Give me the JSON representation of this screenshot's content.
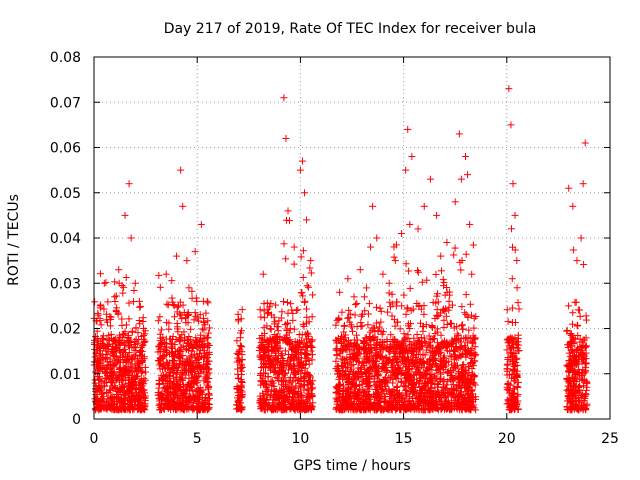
{
  "chart_data": {
    "type": "scatter",
    "title": "Day 217 of 2019, Rate Of TEC Index for receiver bula",
    "xlabel": "GPS time / hours",
    "ylabel": "ROTI / TECUs",
    "xlim": [
      0,
      25
    ],
    "ylim": [
      0,
      0.08
    ],
    "grid": true,
    "marker": "+",
    "series_color": "#ff0000",
    "x_ticks": [
      {
        "value": 0,
        "label": "0"
      },
      {
        "value": 5,
        "label": "5"
      },
      {
        "value": 10,
        "label": "10"
      },
      {
        "value": 15,
        "label": "15"
      },
      {
        "value": 20,
        "label": "20"
      },
      {
        "value": 25,
        "label": "25"
      }
    ],
    "y_ticks": [
      {
        "value": 0,
        "label": "0"
      },
      {
        "value": 0.01,
        "label": "0.01"
      },
      {
        "value": 0.02,
        "label": "0.02"
      },
      {
        "value": 0.03,
        "label": "0.03"
      },
      {
        "value": 0.04,
        "label": "0.04"
      },
      {
        "value": 0.05,
        "label": "0.05"
      },
      {
        "value": 0.06,
        "label": "0.06"
      },
      {
        "value": 0.07,
        "label": "0.07"
      },
      {
        "value": 0.08,
        "label": "0.08"
      }
    ],
    "observation_windows": [
      {
        "start": 0.0,
        "end": 2.5,
        "peak": 0.052
      },
      {
        "start": 3.1,
        "end": 5.0,
        "peak": 0.055
      },
      {
        "start": 5.0,
        "end": 5.6,
        "peak": 0.043
      },
      {
        "start": 6.9,
        "end": 7.2,
        "peak": 0.023
      },
      {
        "start": 8.0,
        "end": 9.1,
        "peak": 0.032
      },
      {
        "start": 9.1,
        "end": 9.6,
        "peak": 0.071
      },
      {
        "start": 9.6,
        "end": 10.6,
        "peak": 0.06
      },
      {
        "start": 11.7,
        "end": 13.2,
        "peak": 0.035
      },
      {
        "start": 13.2,
        "end": 14.4,
        "peak": 0.047
      },
      {
        "start": 14.4,
        "end": 15.6,
        "peak": 0.064
      },
      {
        "start": 15.6,
        "end": 17.3,
        "peak": 0.053
      },
      {
        "start": 17.3,
        "end": 18.5,
        "peak": 0.063
      },
      {
        "start": 20.0,
        "end": 20.6,
        "peak": 0.073
      },
      {
        "start": 22.9,
        "end": 23.9,
        "peak": 0.061
      }
    ],
    "points": [
      [
        0.1,
        0.012
      ],
      [
        0.3,
        0.025
      ],
      [
        0.5,
        0.03
      ],
      [
        0.8,
        0.022
      ],
      [
        1.0,
        0.027
      ],
      [
        1.2,
        0.033
      ],
      [
        1.5,
        0.045
      ],
      [
        1.7,
        0.052
      ],
      [
        1.8,
        0.04
      ],
      [
        2.0,
        0.03
      ],
      [
        2.2,
        0.026
      ],
      [
        2.4,
        0.02
      ],
      [
        3.5,
        0.032
      ],
      [
        4.0,
        0.036
      ],
      [
        4.2,
        0.055
      ],
      [
        4.3,
        0.047
      ],
      [
        4.5,
        0.035
      ],
      [
        4.6,
        0.029
      ],
      [
        4.9,
        0.037
      ],
      [
        5.2,
        0.043
      ],
      [
        5.3,
        0.026
      ],
      [
        5.5,
        0.018
      ],
      [
        7.0,
        0.022
      ],
      [
        7.1,
        0.019
      ],
      [
        7.15,
        0.016
      ],
      [
        8.2,
        0.032
      ],
      [
        8.6,
        0.023
      ],
      [
        8.9,
        0.018
      ],
      [
        9.2,
        0.071
      ],
      [
        9.3,
        0.062
      ],
      [
        9.4,
        0.046
      ],
      [
        9.7,
        0.038
      ],
      [
        10.0,
        0.055
      ],
      [
        10.1,
        0.057
      ],
      [
        10.2,
        0.05
      ],
      [
        10.3,
        0.044
      ],
      [
        10.5,
        0.035
      ],
      [
        11.9,
        0.028
      ],
      [
        12.3,
        0.031
      ],
      [
        12.6,
        0.027
      ],
      [
        12.9,
        0.033
      ],
      [
        13.1,
        0.027
      ],
      [
        13.4,
        0.038
      ],
      [
        13.5,
        0.047
      ],
      [
        13.7,
        0.04
      ],
      [
        14.0,
        0.032
      ],
      [
        14.3,
        0.03
      ],
      [
        14.6,
        0.035
      ],
      [
        14.9,
        0.041
      ],
      [
        15.1,
        0.055
      ],
      [
        15.2,
        0.064
      ],
      [
        15.3,
        0.043
      ],
      [
        15.4,
        0.058
      ],
      [
        15.7,
        0.042
      ],
      [
        16.0,
        0.047
      ],
      [
        16.3,
        0.053
      ],
      [
        16.6,
        0.045
      ],
      [
        16.8,
        0.036
      ],
      [
        17.1,
        0.039
      ],
      [
        17.5,
        0.048
      ],
      [
        17.7,
        0.063
      ],
      [
        17.8,
        0.053
      ],
      [
        18.0,
        0.058
      ],
      [
        18.1,
        0.054
      ],
      [
        18.2,
        0.043
      ],
      [
        18.3,
        0.032
      ],
      [
        20.1,
        0.073
      ],
      [
        20.2,
        0.065
      ],
      [
        20.3,
        0.052
      ],
      [
        20.4,
        0.045
      ],
      [
        20.5,
        0.029
      ],
      [
        23.0,
        0.051
      ],
      [
        23.2,
        0.047
      ],
      [
        23.4,
        0.035
      ],
      [
        23.6,
        0.04
      ],
      [
        23.7,
        0.052
      ],
      [
        23.8,
        0.061
      ]
    ]
  }
}
